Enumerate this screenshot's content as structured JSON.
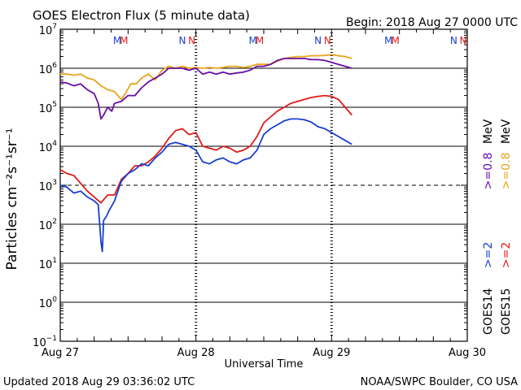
{
  "chart_data": {
    "type": "line",
    "title": "GOES Electron Flux (5 minute data)",
    "begin_label": "Begin: 2018 Aug 27 0000 UTC",
    "xlabel": "Universal Time",
    "ylabel": "Particles cm⁻²s⁻¹sr⁻¹",
    "ylim_exponent": [
      -1,
      7
    ],
    "y_ticks": [
      {
        "base": "10",
        "exp": "7"
      },
      {
        "base": "10",
        "exp": "6"
      },
      {
        "base": "10",
        "exp": "5"
      },
      {
        "base": "10",
        "exp": "4"
      },
      {
        "base": "10",
        "exp": "3"
      },
      {
        "base": "10",
        "exp": "2"
      },
      {
        "base": "10",
        "exp": "1"
      },
      {
        "base": "10",
        "exp": "0"
      },
      {
        "base": "10",
        "exp": "−1"
      }
    ],
    "x_ticks": [
      "Aug 27",
      "Aug 28",
      "Aug 29",
      "Aug 30"
    ],
    "xlim_days": [
      0,
      3
    ],
    "dashed_reference_exponent": 3,
    "solid_grid_exponents": [
      6,
      5,
      4,
      2,
      1,
      0
    ],
    "eclipse_markers": [
      {
        "day": 0.42,
        "label": "M",
        "color": "#1a3fd0"
      },
      {
        "day": 0.47,
        "label": "M",
        "color": "#e21b1b"
      },
      {
        "day": 0.9,
        "label": "N",
        "color": "#1a3fd0"
      },
      {
        "day": 0.97,
        "label": "N",
        "color": "#e21b1b"
      },
      {
        "day": 1.42,
        "label": "M",
        "color": "#1a3fd0"
      },
      {
        "day": 1.47,
        "label": "M",
        "color": "#e21b1b"
      },
      {
        "day": 1.9,
        "label": "N",
        "color": "#1a3fd0"
      },
      {
        "day": 1.97,
        "label": "N",
        "color": "#e21b1b"
      },
      {
        "day": 2.42,
        "label": "M",
        "color": "#1a3fd0"
      },
      {
        "day": 2.47,
        "label": "M",
        "color": "#e21b1b"
      },
      {
        "day": 2.9,
        "label": "N",
        "color": "#1a3fd0"
      },
      {
        "day": 2.97,
        "label": "N",
        "color": "#e21b1b"
      }
    ],
    "day_boundary_markers": [
      1.0,
      2.0
    ],
    "series": [
      {
        "name": "GOES15 >=0.8 MeV",
        "color": "#e8a41c",
        "points": [
          [
            0.0,
            5.85
          ],
          [
            0.05,
            5.85
          ],
          [
            0.1,
            5.82
          ],
          [
            0.15,
            5.85
          ],
          [
            0.2,
            5.75
          ],
          [
            0.25,
            5.7
          ],
          [
            0.3,
            5.55
          ],
          [
            0.35,
            5.45
          ],
          [
            0.4,
            5.4
          ],
          [
            0.45,
            5.2
          ],
          [
            0.48,
            5.35
          ],
          [
            0.52,
            5.6
          ],
          [
            0.56,
            5.6
          ],
          [
            0.6,
            5.75
          ],
          [
            0.65,
            5.85
          ],
          [
            0.7,
            5.7
          ],
          [
            0.75,
            5.95
          ],
          [
            0.8,
            6.05
          ],
          [
            0.85,
            6.0
          ],
          [
            0.9,
            6.05
          ],
          [
            0.95,
            6.0
          ],
          [
            1.0,
            6.02
          ],
          [
            1.05,
            6.0
          ],
          [
            1.1,
            6.02
          ],
          [
            1.15,
            6.0
          ],
          [
            1.2,
            6.02
          ],
          [
            1.25,
            6.05
          ],
          [
            1.3,
            6.05
          ],
          [
            1.35,
            6.02
          ],
          [
            1.4,
            6.05
          ],
          [
            1.45,
            6.1
          ],
          [
            1.5,
            6.1
          ],
          [
            1.55,
            6.1
          ],
          [
            1.6,
            6.18
          ],
          [
            1.65,
            6.25
          ],
          [
            1.7,
            6.28
          ],
          [
            1.75,
            6.3
          ],
          [
            1.8,
            6.3
          ],
          [
            1.85,
            6.32
          ],
          [
            1.9,
            6.32
          ],
          [
            1.95,
            6.33
          ],
          [
            2.0,
            6.35
          ],
          [
            2.05,
            6.32
          ],
          [
            2.1,
            6.3
          ],
          [
            2.15,
            6.25
          ]
        ]
      },
      {
        "name": "GOES14 >=0.8 MeV",
        "color": "#6a0fa0",
        "points": [
          [
            0.0,
            5.65
          ],
          [
            0.05,
            5.62
          ],
          [
            0.1,
            5.55
          ],
          [
            0.15,
            5.6
          ],
          [
            0.2,
            5.45
          ],
          [
            0.25,
            5.35
          ],
          [
            0.28,
            5.1
          ],
          [
            0.3,
            4.7
          ],
          [
            0.32,
            4.8
          ],
          [
            0.35,
            5.0
          ],
          [
            0.38,
            4.9
          ],
          [
            0.4,
            5.1
          ],
          [
            0.45,
            5.15
          ],
          [
            0.5,
            5.3
          ],
          [
            0.55,
            5.3
          ],
          [
            0.6,
            5.5
          ],
          [
            0.65,
            5.65
          ],
          [
            0.7,
            5.75
          ],
          [
            0.75,
            5.85
          ],
          [
            0.8,
            6.0
          ],
          [
            0.85,
            6.0
          ],
          [
            0.9,
            6.0
          ],
          [
            0.95,
            5.95
          ],
          [
            1.0,
            6.0
          ],
          [
            1.05,
            5.85
          ],
          [
            1.1,
            5.9
          ],
          [
            1.15,
            5.85
          ],
          [
            1.2,
            5.9
          ],
          [
            1.25,
            5.85
          ],
          [
            1.3,
            5.88
          ],
          [
            1.35,
            5.9
          ],
          [
            1.4,
            5.95
          ],
          [
            1.45,
            6.05
          ],
          [
            1.5,
            6.05
          ],
          [
            1.55,
            6.1
          ],
          [
            1.6,
            6.2
          ],
          [
            1.65,
            6.25
          ],
          [
            1.7,
            6.25
          ],
          [
            1.75,
            6.25
          ],
          [
            1.8,
            6.25
          ],
          [
            1.85,
            6.22
          ],
          [
            1.9,
            6.22
          ],
          [
            1.95,
            6.2
          ],
          [
            2.0,
            6.15
          ],
          [
            2.05,
            6.1
          ],
          [
            2.1,
            6.05
          ],
          [
            2.15,
            6.0
          ]
        ]
      },
      {
        "name": "GOES15 >=2 MeV",
        "color": "#e21b1b",
        "points": [
          [
            0.0,
            3.4
          ],
          [
            0.05,
            3.3
          ],
          [
            0.1,
            3.25
          ],
          [
            0.15,
            3.05
          ],
          [
            0.2,
            2.85
          ],
          [
            0.25,
            2.7
          ],
          [
            0.3,
            2.55
          ],
          [
            0.35,
            2.75
          ],
          [
            0.4,
            2.75
          ],
          [
            0.45,
            3.15
          ],
          [
            0.5,
            3.3
          ],
          [
            0.55,
            3.5
          ],
          [
            0.6,
            3.5
          ],
          [
            0.65,
            3.6
          ],
          [
            0.7,
            3.75
          ],
          [
            0.75,
            3.95
          ],
          [
            0.8,
            4.2
          ],
          [
            0.85,
            4.4
          ],
          [
            0.9,
            4.45
          ],
          [
            0.95,
            4.3
          ],
          [
            1.0,
            4.35
          ],
          [
            1.05,
            4.0
          ],
          [
            1.1,
            3.95
          ],
          [
            1.15,
            3.9
          ],
          [
            1.2,
            4.0
          ],
          [
            1.25,
            3.95
          ],
          [
            1.3,
            3.85
          ],
          [
            1.35,
            3.9
          ],
          [
            1.4,
            4.0
          ],
          [
            1.45,
            4.25
          ],
          [
            1.5,
            4.6
          ],
          [
            1.55,
            4.75
          ],
          [
            1.6,
            4.9
          ],
          [
            1.65,
            5.0
          ],
          [
            1.7,
            5.1
          ],
          [
            1.75,
            5.15
          ],
          [
            1.8,
            5.2
          ],
          [
            1.85,
            5.25
          ],
          [
            1.9,
            5.28
          ],
          [
            1.95,
            5.3
          ],
          [
            2.0,
            5.28
          ],
          [
            2.05,
            5.2
          ],
          [
            2.1,
            5.0
          ],
          [
            2.15,
            4.8
          ]
        ]
      },
      {
        "name": "GOES14 >=2 MeV",
        "color": "#1a3fd0",
        "points": [
          [
            0.0,
            3.0
          ],
          [
            0.05,
            2.95
          ],
          [
            0.1,
            2.8
          ],
          [
            0.15,
            2.85
          ],
          [
            0.2,
            2.7
          ],
          [
            0.25,
            2.6
          ],
          [
            0.28,
            2.5
          ],
          [
            0.3,
            1.55
          ],
          [
            0.31,
            1.3
          ],
          [
            0.32,
            2.1
          ],
          [
            0.34,
            2.2
          ],
          [
            0.36,
            2.35
          ],
          [
            0.4,
            2.6
          ],
          [
            0.45,
            3.1
          ],
          [
            0.5,
            3.3
          ],
          [
            0.55,
            3.4
          ],
          [
            0.6,
            3.55
          ],
          [
            0.65,
            3.5
          ],
          [
            0.7,
            3.7
          ],
          [
            0.75,
            3.85
          ],
          [
            0.8,
            4.05
          ],
          [
            0.85,
            4.1
          ],
          [
            0.9,
            4.05
          ],
          [
            0.95,
            4.0
          ],
          [
            1.0,
            3.9
          ],
          [
            1.05,
            3.6
          ],
          [
            1.1,
            3.55
          ],
          [
            1.15,
            3.65
          ],
          [
            1.2,
            3.7
          ],
          [
            1.25,
            3.6
          ],
          [
            1.3,
            3.55
          ],
          [
            1.35,
            3.65
          ],
          [
            1.4,
            3.7
          ],
          [
            1.45,
            3.9
          ],
          [
            1.5,
            4.3
          ],
          [
            1.55,
            4.45
          ],
          [
            1.6,
            4.55
          ],
          [
            1.65,
            4.65
          ],
          [
            1.7,
            4.7
          ],
          [
            1.75,
            4.7
          ],
          [
            1.8,
            4.68
          ],
          [
            1.85,
            4.62
          ],
          [
            1.9,
            4.5
          ],
          [
            1.95,
            4.45
          ],
          [
            2.0,
            4.35
          ],
          [
            2.05,
            4.25
          ],
          [
            2.1,
            4.15
          ],
          [
            2.15,
            4.05
          ]
        ]
      }
    ],
    "legend": [
      {
        "satellite": "GOES14",
        "color": "#1a3fd0",
        "label": ">=2",
        "color2": "#6a0fa0",
        "label2": ">=0.8",
        "unit": "MeV"
      },
      {
        "satellite": "GOES15",
        "color": "#e21b1b",
        "label": ">=2",
        "color2": "#e8a41c",
        "label2": ">=0.8",
        "unit": "MeV"
      }
    ]
  },
  "footer": {
    "updated": "Updated 2018 Aug 29 03:36:02 UTC",
    "credit": "NOAA/SWPC Boulder, CO USA"
  }
}
